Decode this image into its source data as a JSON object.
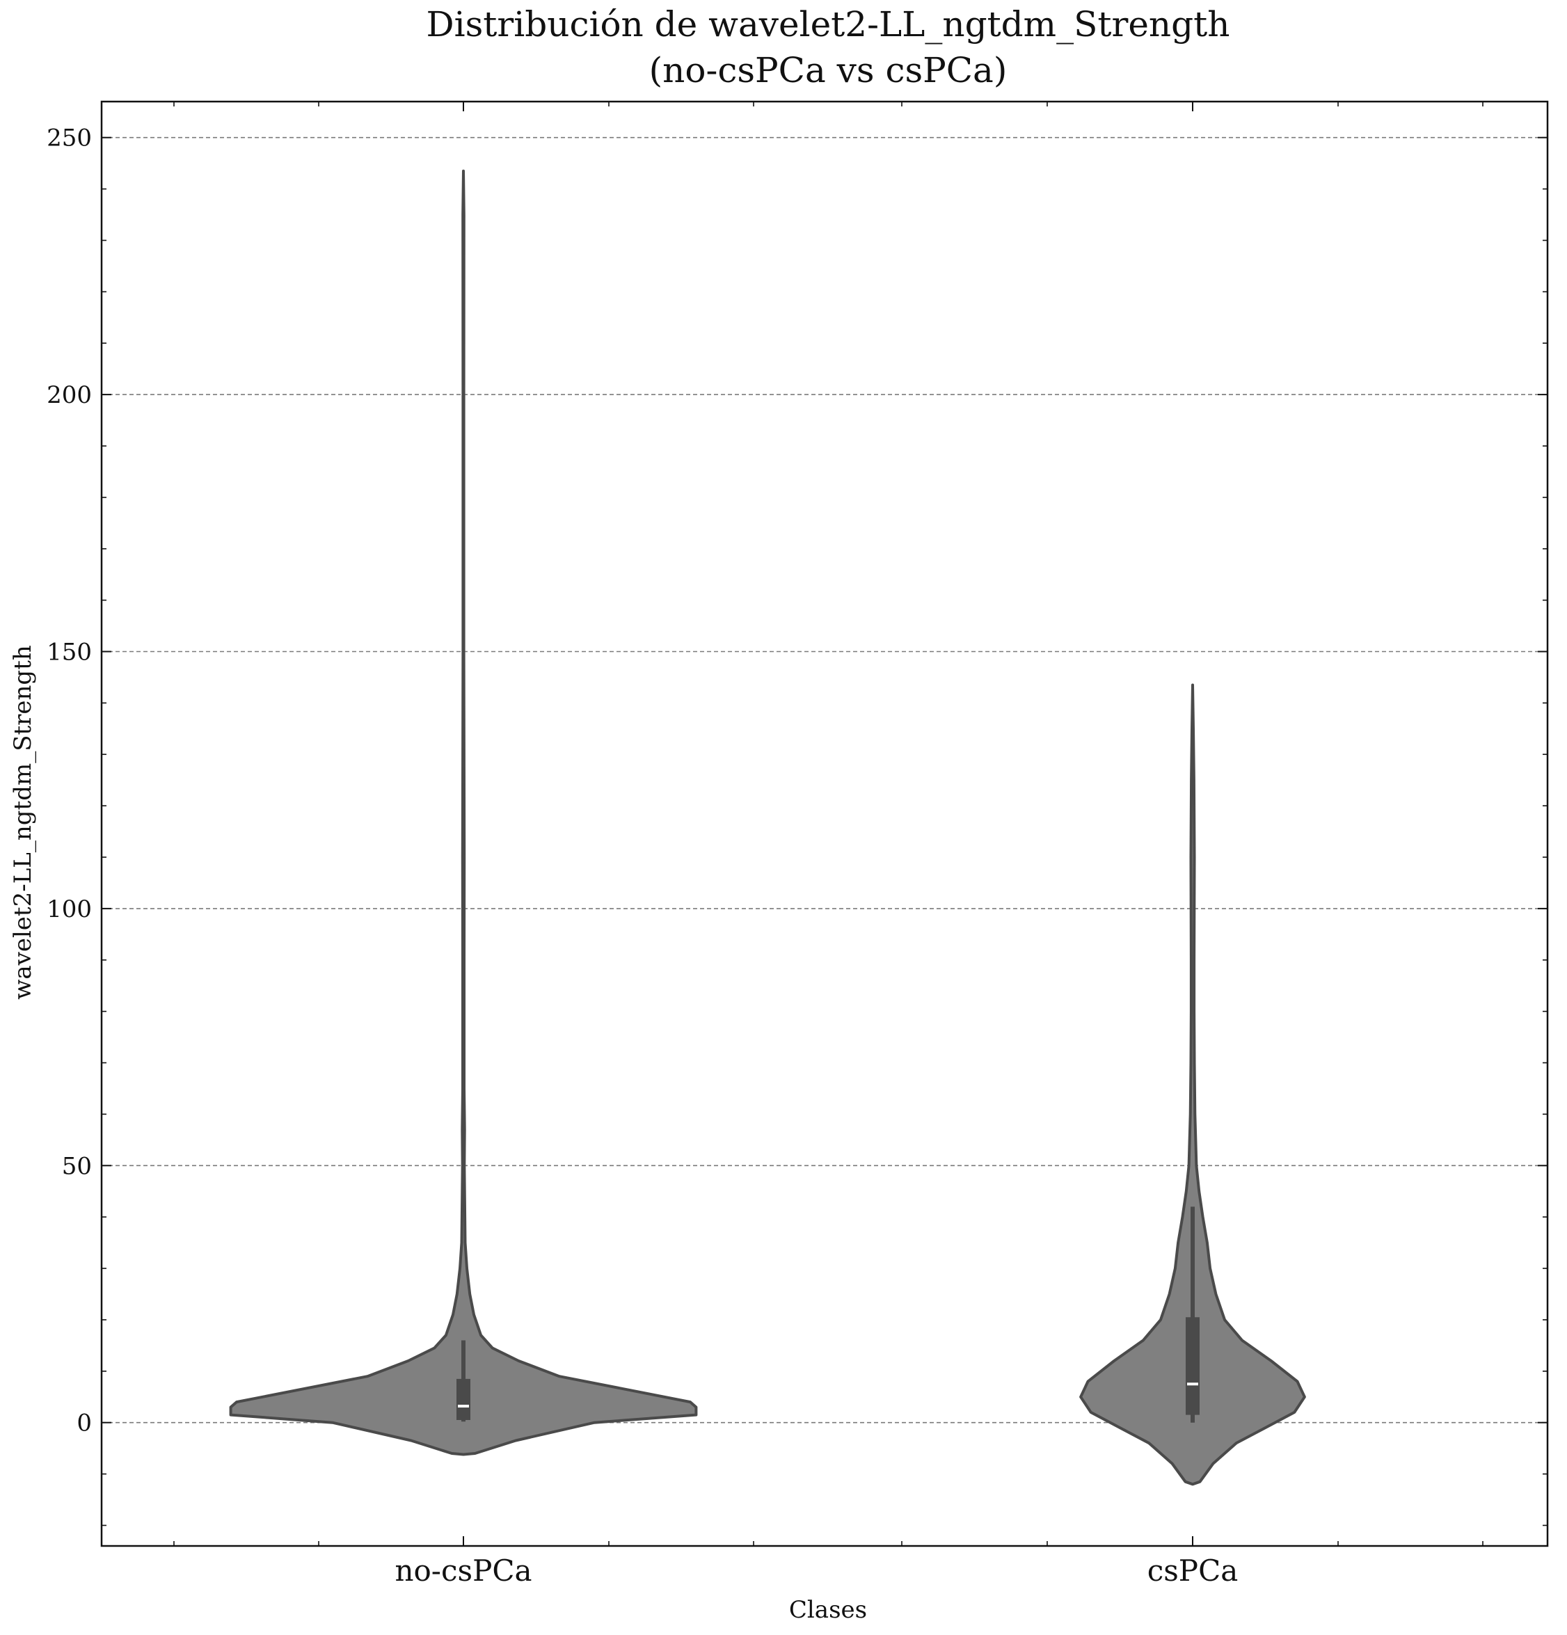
{
  "chart_data": {
    "type": "violin",
    "title": "Distribución de wavelet2-LL_ngtdm_Strength",
    "subtitle": "(no-csPCa vs csPCa)",
    "xlabel": "Clases",
    "ylabel": "wavelet2-LL_ngtdm_Strength",
    "categories": [
      "no-csPCa",
      "csPCa"
    ],
    "ylim": [
      -24,
      257
    ],
    "yticks": [
      0,
      50,
      100,
      150,
      200,
      250
    ],
    "ytick_labels": [
      "0",
      "50",
      "100",
      "150",
      "200",
      "250"
    ],
    "grid": "horizontal dashed",
    "colors": {
      "fill": "#808080",
      "outline": "#4a4a4a",
      "median": "#ffffff",
      "box": "#4a4a4a",
      "grid": "#7a7a7a"
    },
    "series": [
      {
        "category": "no-csPCa",
        "min": 0.2,
        "q1": 0.5,
        "median": 3.2,
        "q3": 8.5,
        "whisker_high": 16.0,
        "max": 243.5,
        "density_profile": [
          {
            "y": -6.2,
            "w": 0.0
          },
          {
            "y": -6.0,
            "w": 0.04
          },
          {
            "y": -3.5,
            "w": 0.18
          },
          {
            "y": 0.0,
            "w": 0.45
          },
          {
            "y": 1.5,
            "w": 0.8
          },
          {
            "y": 3.0,
            "w": 0.8
          },
          {
            "y": 4.0,
            "w": 0.78
          },
          {
            "y": 9.0,
            "w": 0.33
          },
          {
            "y": 12.0,
            "w": 0.19
          },
          {
            "y": 14.5,
            "w": 0.1
          },
          {
            "y": 17.0,
            "w": 0.06
          },
          {
            "y": 21.0,
            "w": 0.036
          },
          {
            "y": 25.0,
            "w": 0.022
          },
          {
            "y": 30.0,
            "w": 0.012
          },
          {
            "y": 35.0,
            "w": 0.006
          },
          {
            "y": 40.0,
            "w": 0.005
          },
          {
            "y": 45.0,
            "w": 0.004
          },
          {
            "y": 50.0,
            "w": 0.003
          },
          {
            "y": 57.0,
            "w": 0.004
          },
          {
            "y": 65.0,
            "w": 0.0025
          },
          {
            "y": 90.0,
            "w": 0.0025
          },
          {
            "y": 110.0,
            "w": 0.0028
          },
          {
            "y": 150.0,
            "w": 0.0015
          },
          {
            "y": 200.0,
            "w": 0.0015
          },
          {
            "y": 235.0,
            "w": 0.0018
          },
          {
            "y": 243.5,
            "w": 0.0
          }
        ]
      },
      {
        "category": "csPCa",
        "min": 0.0,
        "q1": 1.5,
        "median": 7.5,
        "q3": 20.5,
        "whisker_high": 42.0,
        "max": 143.5,
        "density_profile": [
          {
            "y": -12.0,
            "w": 0.0
          },
          {
            "y": -11.5,
            "w": 0.025
          },
          {
            "y": -8.0,
            "w": 0.07
          },
          {
            "y": -4.0,
            "w": 0.15
          },
          {
            "y": -1.0,
            "w": 0.25
          },
          {
            "y": 2.0,
            "w": 0.35
          },
          {
            "y": 5.0,
            "w": 0.385
          },
          {
            "y": 8.0,
            "w": 0.36
          },
          {
            "y": 12.0,
            "w": 0.27
          },
          {
            "y": 16.0,
            "w": 0.17
          },
          {
            "y": 20.0,
            "w": 0.11
          },
          {
            "y": 25.0,
            "w": 0.08
          },
          {
            "y": 30.0,
            "w": 0.06
          },
          {
            "y": 35.0,
            "w": 0.05
          },
          {
            "y": 40.0,
            "w": 0.035
          },
          {
            "y": 45.0,
            "w": 0.022
          },
          {
            "y": 50.0,
            "w": 0.013
          },
          {
            "y": 60.0,
            "w": 0.008
          },
          {
            "y": 70.0,
            "w": 0.006
          },
          {
            "y": 80.0,
            "w": 0.005
          },
          {
            "y": 90.0,
            "w": 0.005
          },
          {
            "y": 100.0,
            "w": 0.0055
          },
          {
            "y": 110.0,
            "w": 0.006
          },
          {
            "y": 125.0,
            "w": 0.0045
          },
          {
            "y": 135.0,
            "w": 0.0025
          },
          {
            "y": 143.5,
            "w": 0.0
          }
        ]
      }
    ]
  }
}
